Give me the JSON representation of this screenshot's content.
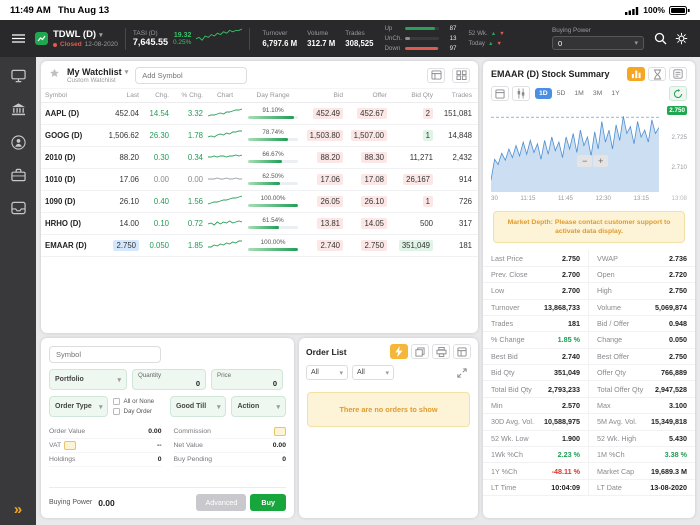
{
  "colors": {
    "positive": "#1f9d55",
    "negative": "#d9342b",
    "accent_orange": "#f5a623",
    "selected_blue": "#4a90e2",
    "chart_line": "#4d8fd1",
    "market_green": "#2aa05a"
  },
  "status_bar": {
    "time": "11:49 AM",
    "date": "Thu Aug 13",
    "battery_pct": "100%"
  },
  "header": {
    "market": {
      "name": "TDWL (D)",
      "status": "Closed",
      "date": "12-08-2020"
    },
    "index": {
      "name": "TASI (D)",
      "value": "7,645.55",
      "change": "19.32",
      "change_pct": "0.25%",
      "spark": [
        3,
        4,
        2,
        5,
        4,
        6,
        5,
        7,
        6,
        8,
        7,
        9,
        8,
        9,
        9,
        10
      ]
    },
    "stats": [
      {
        "label": "Turnover",
        "value": "6,797.6 M"
      },
      {
        "label": "Volume",
        "value": "312.7 M"
      },
      {
        "label": "Trades",
        "value": "308,525"
      }
    ],
    "breadth": [
      {
        "label": "Up",
        "value": "87",
        "pct": 87,
        "color": "#2aa05a"
      },
      {
        "label": "UnCh.",
        "value": "13",
        "pct": 13,
        "color": "#8e8e93"
      },
      {
        "label": "Down",
        "value": "97",
        "pct": 97,
        "color": "#e05b4f"
      }
    ],
    "wk52": {
      "row1": "52 Wk.",
      "row2": "Today"
    },
    "buying_power": {
      "label": "Buying Power",
      "value": "0"
    }
  },
  "watchlist": {
    "title": "My Watchlist",
    "subtitle": "Custom Watchlist",
    "add_placeholder": "Add Symbol",
    "columns": [
      "Symbol",
      "Last",
      "Chg.",
      "% Chg.",
      "Chart",
      "Day Range",
      "Bid",
      "Offer",
      "Bid Qty",
      "Trades"
    ],
    "rows": [
      {
        "sym": "AAPL (D)",
        "last": "452.04",
        "lt": "",
        "chg": "14.54",
        "pchg": "3.32",
        "cc": "g",
        "spark": [
          2,
          3,
          3,
          4,
          5,
          4,
          6,
          6,
          7,
          8,
          8,
          9
        ],
        "sc": "#2aa05a",
        "rp": 91,
        "rpt": "91.10%",
        "bid": "452.49",
        "bt": "r",
        "offer": "452.67",
        "ot": "r",
        "qty": "2",
        "qt": "r",
        "trades": "151,081"
      },
      {
        "sym": "GOOG (D)",
        "last": "1,506.62",
        "lt": "",
        "chg": "26.30",
        "pchg": "1.78",
        "cc": "g",
        "spark": [
          3,
          4,
          3,
          5,
          6,
          5,
          7,
          6,
          8,
          8,
          9,
          9
        ],
        "sc": "#2aa05a",
        "rp": 79,
        "rpt": "78.74%",
        "bid": "1,503.80",
        "bt": "r",
        "offer": "1,507.00",
        "ot": "r",
        "qty": "1",
        "qt": "g",
        "trades": "14,848"
      },
      {
        "sym": "2010 (D)",
        "last": "88.20",
        "lt": "",
        "chg": "0.30",
        "pchg": "0.34",
        "cc": "g",
        "spark": [
          5,
          5,
          6,
          5,
          6,
          6,
          5,
          6,
          6,
          7,
          6,
          7
        ],
        "sc": "#2aa05a",
        "rp": 67,
        "rpt": "66.67%",
        "bid": "88.20",
        "bt": "r",
        "offer": "88.30",
        "ot": "r",
        "qty": "11,271",
        "qt": "",
        "trades": "2,432"
      },
      {
        "sym": "1010 (D)",
        "last": "17.06",
        "lt": "",
        "chg": "0.00",
        "pchg": "0.00",
        "cc": "n",
        "spark": [
          5,
          5,
          5,
          6,
          5,
          5,
          6,
          5,
          5,
          6,
          5,
          5
        ],
        "sc": "#9aa0a6",
        "rp": 63,
        "rpt": "62.50%",
        "bid": "17.06",
        "bt": "r",
        "offer": "17.08",
        "ot": "r",
        "qty": "26,167",
        "qt": "r",
        "trades": "914"
      },
      {
        "sym": "1090 (D)",
        "last": "26.10",
        "lt": "",
        "chg": "0.40",
        "pchg": "1.56",
        "cc": "g",
        "spark": [
          2,
          3,
          4,
          4,
          5,
          6,
          6,
          7,
          8,
          8,
          9,
          10
        ],
        "sc": "#2aa05a",
        "rp": 100,
        "rpt": "100.00%",
        "bid": "26.05",
        "bt": "r",
        "offer": "26.10",
        "ot": "r",
        "qty": "1",
        "qt": "r",
        "trades": "726"
      },
      {
        "sym": "HRHO (D)",
        "last": "14.00",
        "lt": "",
        "chg": "0.10",
        "pchg": "0.72",
        "cc": "g",
        "spark": [
          4,
          5,
          3,
          6,
          4,
          6,
          5,
          7,
          5,
          6,
          7,
          6
        ],
        "sc": "#2aa05a",
        "rp": 62,
        "rpt": "61.54%",
        "bid": "13.81",
        "bt": "r",
        "offer": "14.05",
        "ot": "r",
        "qty": "500",
        "qt": "",
        "trades": "317"
      },
      {
        "sym": "EMAAR (D)",
        "last": "2.750",
        "lt": "b",
        "chg": "0.050",
        "pchg": "1.85",
        "cc": "g",
        "spark": [
          3,
          3,
          5,
          4,
          6,
          5,
          7,
          6,
          8,
          7,
          9,
          9
        ],
        "sc": "#2aa05a",
        "rp": 100,
        "rpt": "100.00%",
        "bid": "2.740",
        "bt": "r",
        "offer": "2.750",
        "ot": "r",
        "qty": "351,049",
        "qt": "g",
        "trades": "181"
      }
    ]
  },
  "order_entry": {
    "symbol_placeholder": "Symbol",
    "portfolio_label": "Portfolio",
    "quantity_label": "Quantity",
    "quantity_value": "0",
    "price_label": "Price",
    "price_value": "0",
    "order_type_label": "Order Type",
    "all_or_none_label": "All or None",
    "day_order_label": "Day Order",
    "good_till_label": "Good Till",
    "action_label": "Action",
    "order_value_label": "Order Value",
    "order_value": "0.00",
    "commission_label": "Commission",
    "vat_label": "VAT",
    "vat_value": "--",
    "net_value_label": "Net Value",
    "net_value": "0.00",
    "holdings_label": "Holdings",
    "holdings_value": "0",
    "buy_pending_label": "Buy Pending",
    "buy_pending_value": "0",
    "buying_power_label": "Buying Power",
    "buying_power_value": "0.00",
    "advanced_label": "Advanced",
    "buy_label": "Buy"
  },
  "order_list": {
    "title": "Order List",
    "filter1": "All",
    "filter2": "All",
    "empty_message": "There are no orders to show"
  },
  "summary": {
    "title": "EMAAR (D) Stock Summary",
    "intervals": [
      {
        "label": "1D",
        "active": true
      },
      {
        "label": "5D",
        "active": false
      },
      {
        "label": "1M",
        "active": false
      },
      {
        "label": "3M",
        "active": false
      },
      {
        "label": "1Y",
        "active": false
      }
    ],
    "chart": {
      "price_tag": "2.750",
      "dash_pct": 13,
      "y_labels": [
        "2.725",
        "2.710"
      ],
      "x_labels": [
        "30",
        "11:15",
        "11:45",
        "12:30",
        "13:15"
      ],
      "end_time": "13:08",
      "points": [
        86,
        62,
        68,
        55,
        63,
        50,
        60,
        46,
        58,
        42,
        56,
        40,
        54,
        44,
        62,
        40,
        56,
        36,
        52,
        42,
        60,
        36,
        50,
        32,
        54,
        28,
        46,
        36,
        58,
        30,
        50,
        18,
        42,
        28,
        50,
        22,
        40,
        12,
        32,
        24,
        44,
        18,
        36,
        28,
        42,
        16,
        32,
        25
      ]
    },
    "notice": "Market Depth: Please contact customer support to activate data display.",
    "stats": [
      {
        "l": "Last Price",
        "v": "2.750"
      },
      {
        "l": "VWAP",
        "v": "2.736"
      },
      {
        "l": "Prev. Close",
        "v": "2.700"
      },
      {
        "l": "Open",
        "v": "2.720"
      },
      {
        "l": "Low",
        "v": "2.700"
      },
      {
        "l": "High",
        "v": "2.750"
      },
      {
        "l": "Turnover",
        "v": "13,868,733"
      },
      {
        "l": "Volume",
        "v": "5,069,874"
      },
      {
        "l": "Trades",
        "v": "181"
      },
      {
        "l": "Bid / Offer",
        "v": "0.948"
      },
      {
        "l": "% Change",
        "v": "1.85 %",
        "c": "g"
      },
      {
        "l": "Change",
        "v": "0.050"
      },
      {
        "l": "Best Bid",
        "v": "2.740"
      },
      {
        "l": "Best Offer",
        "v": "2.750"
      },
      {
        "l": "Bid Qty",
        "v": "351,049"
      },
      {
        "l": "Offer Qty",
        "v": "766,889"
      },
      {
        "l": "Total Bid Qty",
        "v": "2,793,233"
      },
      {
        "l": "Total Offer Qty",
        "v": "2,947,528"
      },
      {
        "l": "Min",
        "v": "2.570"
      },
      {
        "l": "Max",
        "v": "3.100"
      },
      {
        "l": "30D Avg. Vol.",
        "v": "10,588,975"
      },
      {
        "l": "5M Avg. Vol.",
        "v": "15,349,818"
      },
      {
        "l": "52 Wk. Low",
        "v": "1.900"
      },
      {
        "l": "52 Wk. High",
        "v": "5.430"
      },
      {
        "l": "1Wk %Ch",
        "v": "2.23 %",
        "c": "g"
      },
      {
        "l": "1M %Ch",
        "v": "3.38 %",
        "c": "g"
      },
      {
        "l": "1Y %Ch",
        "v": "-48.11 %",
        "c": "r"
      },
      {
        "l": "Market Cap",
        "v": "19,689.3 M"
      },
      {
        "l": "LT Time",
        "v": "10:04:09"
      },
      {
        "l": "LT Date",
        "v": "13-08-2020"
      }
    ]
  },
  "icons": {
    "chevron_down": "▾",
    "up_arrow": "▲",
    "down_arrow": "▼",
    "expand": "»",
    "zoom_in": "+",
    "zoom_out": "−"
  }
}
